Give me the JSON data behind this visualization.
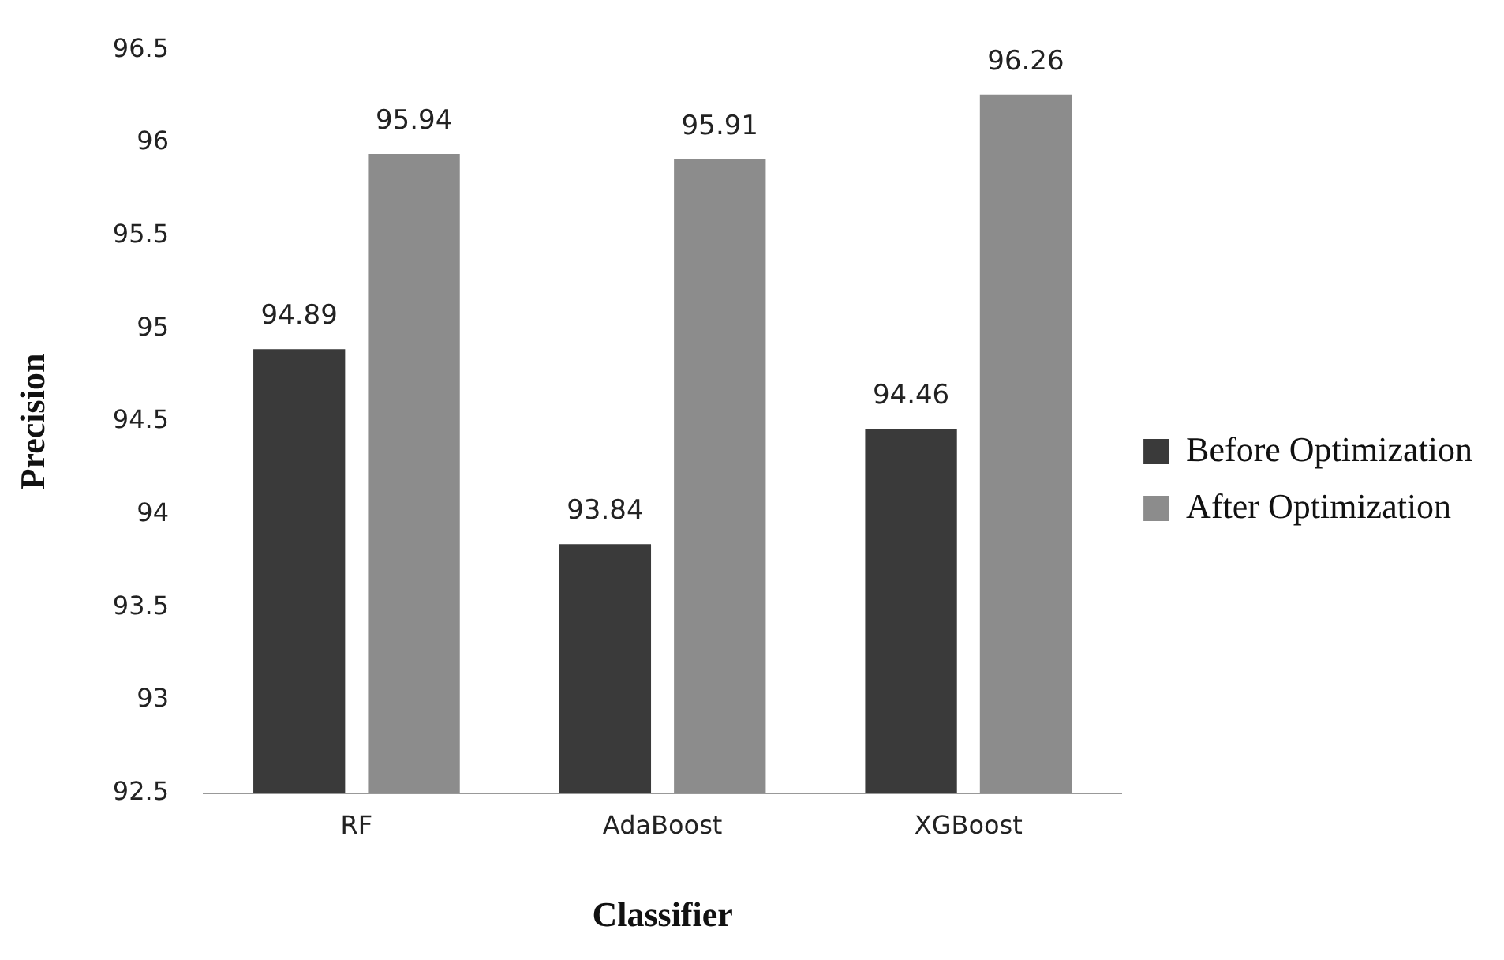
{
  "chart_data": {
    "type": "bar",
    "xlabel": "Classifier",
    "ylabel": "Precision",
    "categories": [
      "RF",
      "AdaBoost",
      "XGBoost"
    ],
    "series": [
      {
        "name": "Before Optimization",
        "color": "#3a3a3a",
        "values": [
          94.89,
          93.84,
          94.46
        ]
      },
      {
        "name": "After Optimization",
        "color": "#8c8c8c",
        "values": [
          95.94,
          95.91,
          96.26
        ]
      }
    ],
    "ylim": [
      92.5,
      96.5
    ],
    "yticks": [
      92.5,
      93,
      93.5,
      94,
      94.5,
      95,
      95.5,
      96,
      96.5
    ],
    "grid": false,
    "legend": "right",
    "data_labels": true
  }
}
